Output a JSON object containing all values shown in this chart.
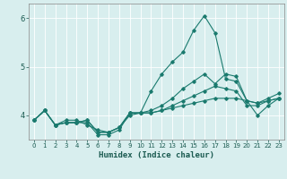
{
  "title": "",
  "xlabel": "Humidex (Indice chaleur)",
  "ylabel": "",
  "bg_color": "#d8eeee",
  "line_color": "#1a7a6e",
  "grid_color": "#ffffff",
  "xlim": [
    -0.5,
    23.5
  ],
  "ylim": [
    3.5,
    6.3
  ],
  "yticks": [
    4,
    5,
    6
  ],
  "xticks": [
    0,
    1,
    2,
    3,
    4,
    5,
    6,
    7,
    8,
    9,
    10,
    11,
    12,
    13,
    14,
    15,
    16,
    17,
    18,
    19,
    20,
    21,
    22,
    23
  ],
  "series": [
    [
      3.9,
      4.1,
      3.8,
      3.9,
      3.9,
      3.8,
      3.7,
      3.65,
      3.75,
      4.0,
      4.05,
      4.05,
      4.1,
      4.15,
      4.2,
      4.25,
      4.3,
      4.35,
      4.35,
      4.35,
      4.3,
      4.25,
      4.3,
      4.35
    ],
    [
      3.9,
      4.1,
      3.8,
      3.85,
      3.85,
      3.85,
      3.6,
      3.6,
      3.7,
      4.05,
      4.05,
      4.05,
      4.1,
      4.2,
      4.3,
      4.4,
      4.5,
      4.6,
      4.55,
      4.5,
      4.2,
      4.2,
      4.3,
      4.35
    ],
    [
      3.9,
      4.1,
      3.8,
      3.85,
      3.85,
      3.9,
      3.65,
      3.65,
      3.75,
      4.05,
      4.05,
      4.1,
      4.2,
      4.35,
      4.55,
      4.7,
      4.85,
      4.65,
      4.85,
      4.8,
      4.3,
      4.25,
      4.35,
      4.45
    ],
    [
      3.9,
      4.1,
      3.8,
      3.85,
      3.85,
      3.9,
      3.65,
      3.65,
      3.75,
      4.05,
      4.05,
      4.5,
      4.85,
      5.1,
      5.3,
      5.75,
      6.05,
      5.7,
      4.75,
      4.7,
      4.3,
      4.0,
      4.2,
      4.35
    ]
  ]
}
